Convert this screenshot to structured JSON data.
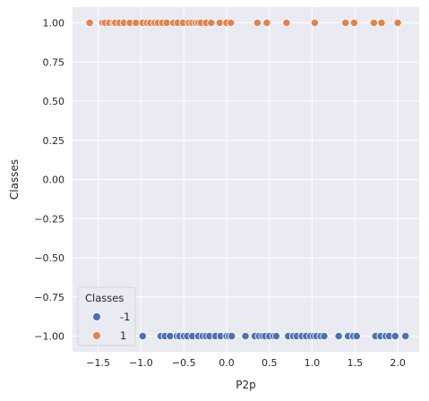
{
  "chart_data": {
    "type": "scatter",
    "xlabel": "P2p",
    "ylabel": "Classes",
    "xlim": [
      -1.8,
      2.25
    ],
    "ylim": [
      -1.1,
      1.1
    ],
    "x_ticks": [
      -1.5,
      -1.0,
      -0.5,
      0.0,
      0.5,
      1.0,
      1.5,
      2.0
    ],
    "x_tick_labels": [
      "−1.5",
      "−1.0",
      "−0.5",
      "0.0",
      "0.5",
      "1.0",
      "1.5",
      "2.0"
    ],
    "y_ticks": [
      1.0,
      0.75,
      0.5,
      0.25,
      0.0,
      -0.25,
      -0.5,
      -0.75,
      -1.0
    ],
    "y_tick_labels": [
      "1.00",
      "0.75",
      "0.50",
      "0.25",
      "0.00",
      "−0.25",
      "−0.50",
      "−0.75",
      "−1.00"
    ],
    "grid": true,
    "legend": {
      "title": "Classes",
      "placement": "lower-left",
      "entries": [
        {
          "label": "-1",
          "color": "#4c72b0"
        },
        {
          "label": "1",
          "color": "#dd8452"
        }
      ]
    },
    "series": [
      {
        "name": "-1",
        "color": "#4c72b0",
        "y": -1,
        "x": [
          -0.98,
          -0.77,
          -0.72,
          -0.66,
          -0.58,
          -0.55,
          -0.5,
          -0.46,
          -0.4,
          -0.33,
          -0.28,
          -0.24,
          -0.2,
          -0.13,
          -0.07,
          0.0,
          0.03,
          0.06,
          0.22,
          0.33,
          0.38,
          0.42,
          0.45,
          0.5,
          0.55,
          0.58,
          0.72,
          0.78,
          0.82,
          0.88,
          0.93,
          0.98,
          1.02,
          1.05,
          1.1,
          1.14,
          1.31,
          1.42,
          1.48,
          1.52,
          1.74,
          1.8,
          1.86,
          1.9,
          1.97,
          2.09
        ]
      },
      {
        "name": "1",
        "color": "#dd8452",
        "y": 1,
        "x": [
          -1.6,
          -1.45,
          -1.42,
          -1.37,
          -1.32,
          -1.3,
          -1.25,
          -1.2,
          -1.13,
          -1.06,
          -0.98,
          -0.93,
          -0.89,
          -0.84,
          -0.8,
          -0.75,
          -0.7,
          -0.62,
          -0.57,
          -0.51,
          -0.44,
          -0.4,
          -0.36,
          -0.33,
          -0.3,
          -0.24,
          -0.18,
          -0.08,
          0.0,
          0.05,
          0.36,
          0.47,
          0.7,
          1.03,
          1.39,
          1.49,
          1.72,
          1.81,
          2.0
        ]
      }
    ]
  }
}
